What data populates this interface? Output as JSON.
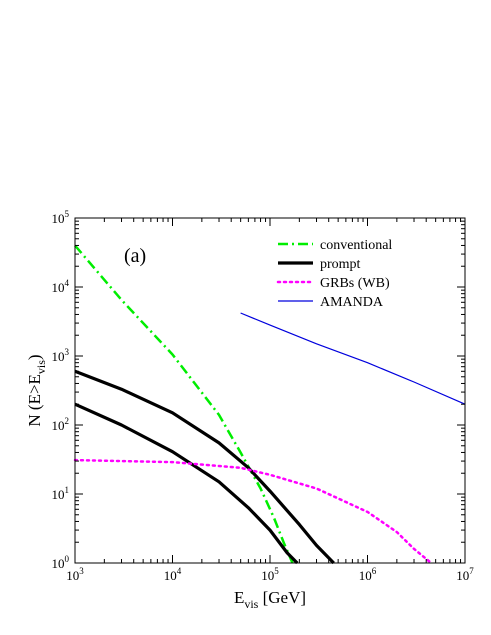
{
  "chart_data": {
    "type": "line",
    "x_scale": "log",
    "y_scale": "log",
    "xlim": [
      1000,
      10000000
    ],
    "ylim": [
      1,
      100000
    ],
    "grid": false,
    "legend_placement": "top-right",
    "xlabel": {
      "main": "E",
      "sub": "vis",
      "rest": " [GeV]"
    },
    "ylabel": {
      "main": "N (E>E",
      "sub": "vis",
      "rest": ")"
    },
    "annotation": "(a)",
    "x_ticks": [
      {
        "base": "10",
        "exp": "3",
        "value": 1000
      },
      {
        "base": "10",
        "exp": "4",
        "value": 10000
      },
      {
        "base": "10",
        "exp": "5",
        "value": 100000
      },
      {
        "base": "10",
        "exp": "6",
        "value": 1000000
      },
      {
        "base": "10",
        "exp": "7",
        "value": 10000000
      }
    ],
    "y_ticks": [
      {
        "base": "10",
        "exp": "0",
        "value": 1
      },
      {
        "base": "10",
        "exp": "1",
        "value": 10
      },
      {
        "base": "10",
        "exp": "2",
        "value": 100
      },
      {
        "base": "10",
        "exp": "3",
        "value": 1000
      },
      {
        "base": "10",
        "exp": "4",
        "value": 10000
      },
      {
        "base": "10",
        "exp": "5",
        "value": 100000
      }
    ],
    "series": [
      {
        "name": "conventional",
        "color": "#00ee00",
        "style": "dash-dot",
        "points": [
          [
            1000,
            40000
          ],
          [
            3000,
            6500
          ],
          [
            10000,
            1050
          ],
          [
            30000,
            140
          ],
          [
            50000,
            40
          ],
          [
            80000,
            12
          ],
          [
            110000,
            4.5
          ],
          [
            140000,
            1.9
          ],
          [
            170000,
            1.0
          ]
        ]
      },
      {
        "name": "prompt",
        "color": "#000000",
        "style": "thick-solid",
        "points": [
          [
            1000,
            600
          ],
          [
            3000,
            330
          ],
          [
            10000,
            150
          ],
          [
            30000,
            55
          ],
          [
            60000,
            24
          ],
          [
            100000,
            11
          ],
          [
            200000,
            3.6
          ],
          [
            300000,
            1.8
          ],
          [
            450000,
            1.0
          ]
        ]
      },
      {
        "name": "",
        "color": "#000000",
        "style": "thick-solid",
        "points": [
          [
            1000,
            200
          ],
          [
            3000,
            100
          ],
          [
            10000,
            41
          ],
          [
            30000,
            15
          ],
          [
            60000,
            6.3
          ],
          [
            100000,
            3.0
          ],
          [
            150000,
            1.4
          ],
          [
            190000,
            1.0
          ]
        ]
      },
      {
        "name": "GRBs (WB)",
        "color": "#ff00ff",
        "style": "dotted",
        "points": [
          [
            1000,
            31
          ],
          [
            10000,
            29
          ],
          [
            50000,
            24
          ],
          [
            100000,
            19
          ],
          [
            300000,
            12
          ],
          [
            1000000,
            5.5
          ],
          [
            2000000,
            2.8
          ],
          [
            3000000,
            1.6
          ],
          [
            4500000,
            1.0
          ]
        ]
      },
      {
        "name": "AMANDA",
        "color": "#0000dd",
        "style": "thin-solid",
        "points": [
          [
            50000,
            4200
          ],
          [
            100000,
            2800
          ],
          [
            300000,
            1500
          ],
          [
            1000000,
            800
          ],
          [
            3000000,
            420
          ],
          [
            10000000,
            200
          ]
        ]
      }
    ],
    "legend": [
      {
        "label": "conventional",
        "series": 0
      },
      {
        "label": "prompt",
        "series": 1
      },
      {
        "label": "GRBs (WB)",
        "series": 3
      },
      {
        "label": "AMANDA",
        "series": 4
      }
    ]
  }
}
